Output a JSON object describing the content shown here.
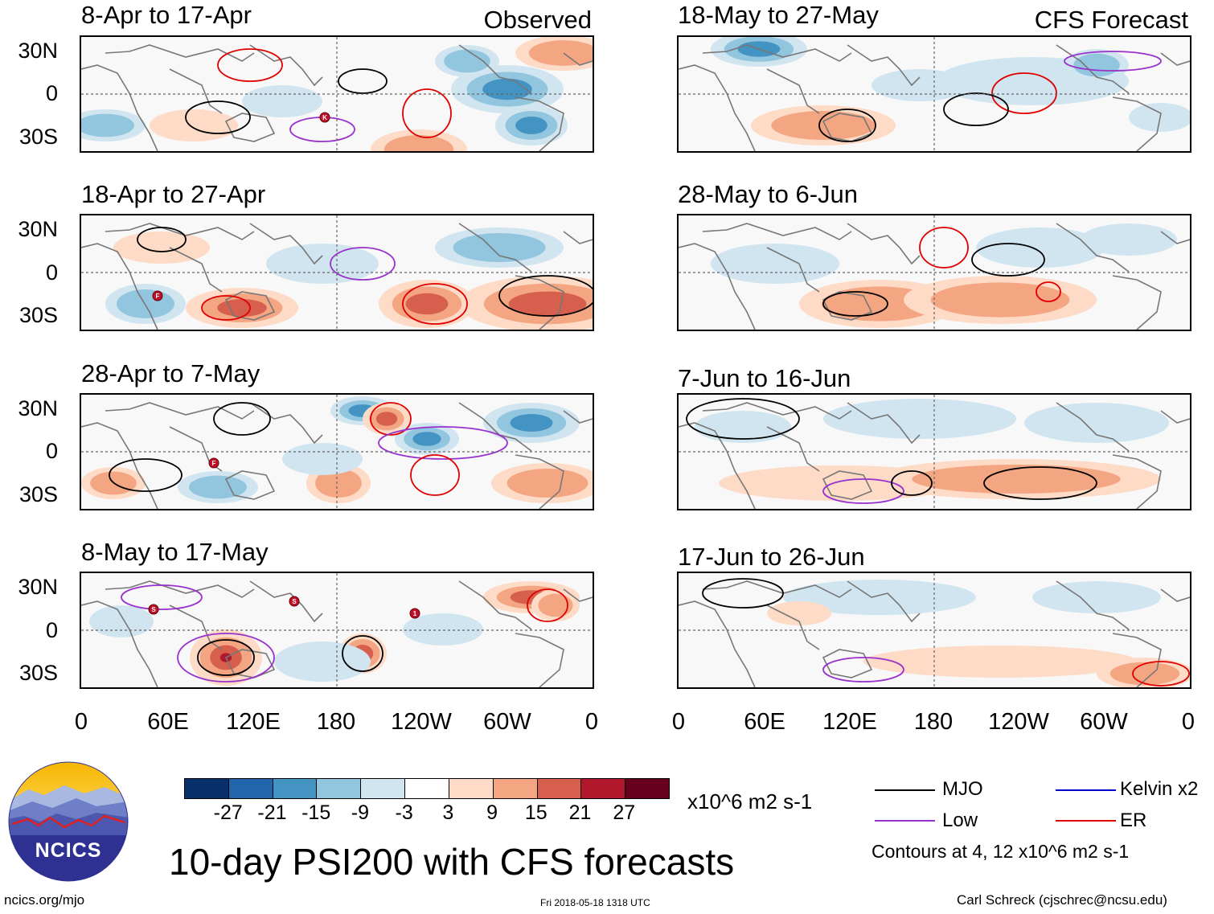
{
  "colors": {
    "neg": [
      "#08306b",
      "#2166ac",
      "#4393c3",
      "#92c5de",
      "#d1e5f0"
    ],
    "zero": "#ffffff",
    "pos": [
      "#fddbc7",
      "#f4a582",
      "#d6604d",
      "#b2182b",
      "#67001f"
    ],
    "mjo": "#000000",
    "low": "#9932cc",
    "kelvin": "#0000cd",
    "er": "#e00000"
  },
  "corner_left": "Observed",
  "corner_right": "CFS Forecast",
  "panels_left": [
    {
      "title": "8-Apr to 17-Apr"
    },
    {
      "title": "18-Apr to 27-Apr"
    },
    {
      "title": "28-Apr to 7-May"
    },
    {
      "title": "8-May to 17-May"
    }
  ],
  "panels_right": [
    {
      "title": "18-May to 27-May"
    },
    {
      "title": "28-May to 6-Jun"
    },
    {
      "title": "7-Jun to 16-Jun"
    },
    {
      "title": "17-Jun to 26-Jun"
    }
  ],
  "y_ticks": [
    "30N",
    "0",
    "30S"
  ],
  "x_ticks": [
    "0",
    "60E",
    "120E",
    "180",
    "120W",
    "60W",
    "0"
  ],
  "storm_markers": {
    "p0": [
      "K"
    ],
    "p1": [
      "F"
    ],
    "p2": [
      "F"
    ],
    "p3": [
      "S",
      "S",
      "1"
    ]
  },
  "colorbar": {
    "ticks": [
      "-27",
      "-21",
      "-15",
      "-9",
      "-3",
      "3",
      "9",
      "15",
      "21",
      "27"
    ],
    "units": "x10^6 m2 s-1"
  },
  "legend": {
    "mjo": "MJO",
    "kelvin": "Kelvin x2",
    "low": "Low",
    "er": "ER",
    "contours_note": "Contours at 4, 12 x10^6 m2 s-1"
  },
  "main_title": "10-day PSI200 with CFS forecasts",
  "logo_text": "NCICS",
  "footer": {
    "url": "ncics.org/mjo",
    "timestamp": "Fri 2018-05-18 1318 UTC",
    "author": "Carl Schreck (cjschrec@ncsu.edu)"
  }
}
